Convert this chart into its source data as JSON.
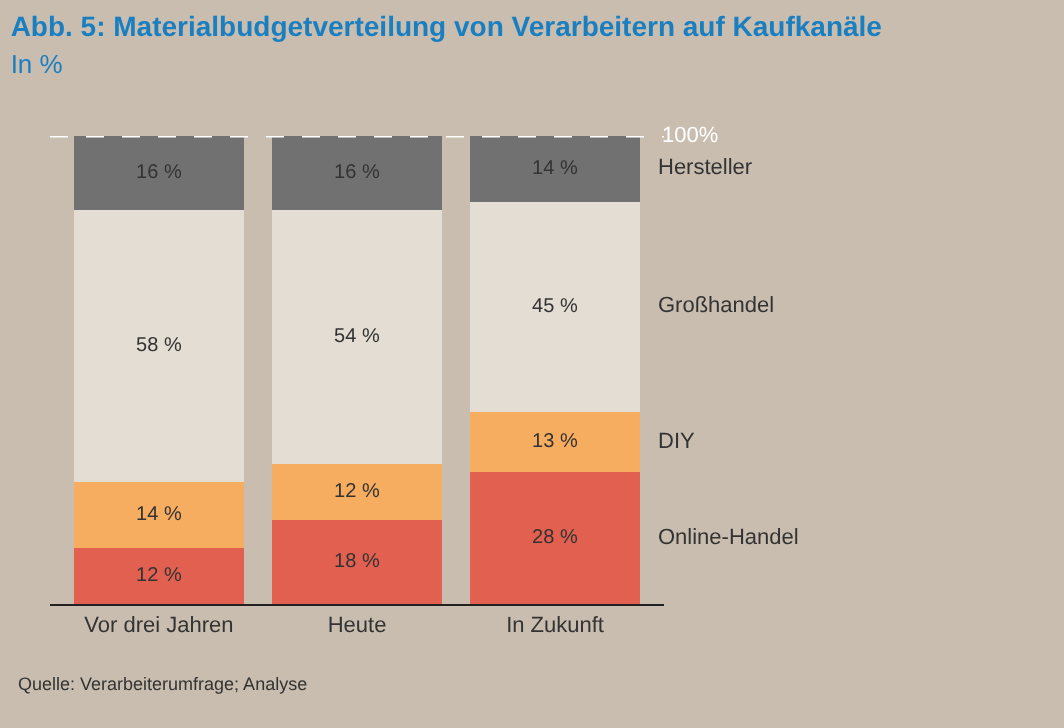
{
  "chart_data": {
    "type": "bar",
    "stacked": true,
    "title": "Abb. 5: Materialbudgetverteilung von Verarbeitern auf Kaufkanäle",
    "subtitle": "In %",
    "categories": [
      "Vor drei Jahren",
      "Heute",
      "In Zukunft"
    ],
    "series": [
      {
        "name": "Online-Handel",
        "color": "#e2604f",
        "values": [
          12,
          18,
          28
        ],
        "value_labels": [
          "12 %",
          "18 %",
          "28 %"
        ]
      },
      {
        "name": "DIY",
        "color": "#f7ad5f",
        "values": [
          14,
          12,
          13
        ],
        "value_labels": [
          "14 %",
          "12 %",
          "13 %"
        ]
      },
      {
        "name": "Großhandel",
        "color": "#e4ddd3",
        "values": [
          58,
          54,
          45
        ],
        "value_labels": [
          "58 %",
          "54 %",
          "45 %"
        ]
      },
      {
        "name": "Hersteller",
        "color": "#727171",
        "values": [
          16,
          16,
          14
        ],
        "value_labels": [
          "16 %",
          "16 %",
          "14 %"
        ]
      }
    ],
    "ylim": [
      0,
      100
    ],
    "tick_labels": "x",
    "legend": false,
    "ref_lines": [
      {
        "axis": "y",
        "value": 100,
        "label": "100%",
        "color": "#ffffff",
        "line_style": "dashed"
      }
    ],
    "annotations": [
      "Quelle: Verarbeiterumfrage; Analyse"
    ]
  }
}
